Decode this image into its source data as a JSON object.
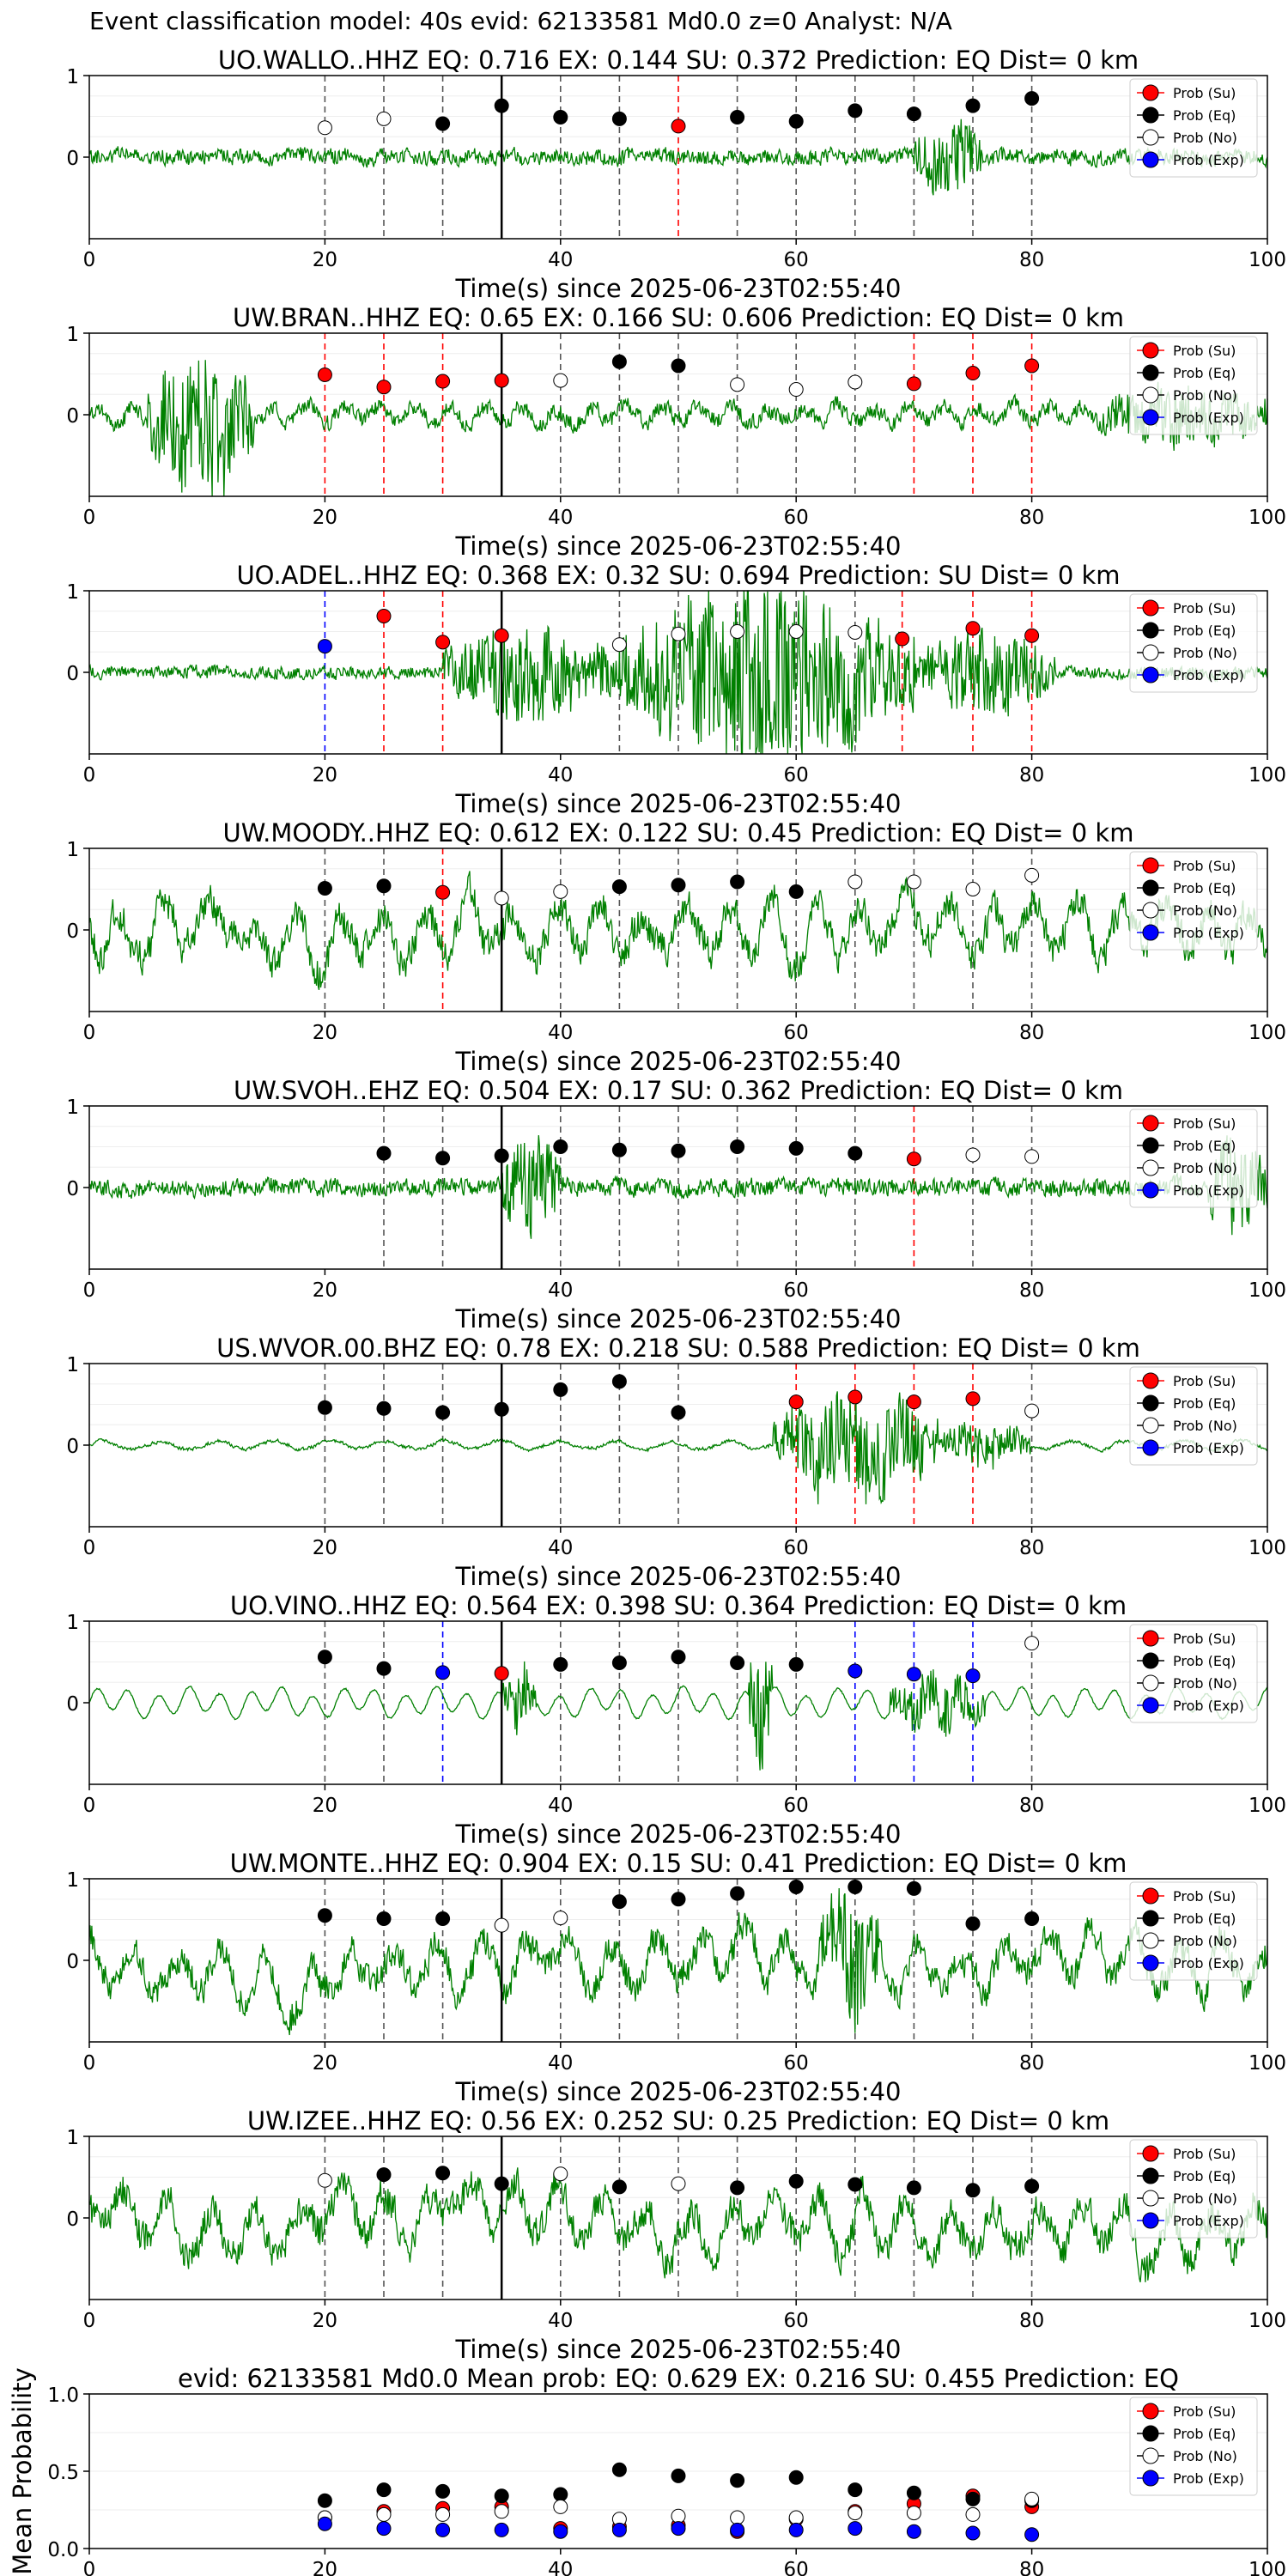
{
  "figure_title": "Event classification model: 40s evid: 62133581 Md0.0 z=0 Analyst: N/A",
  "legend": [
    "Prob (Su)",
    "Prob (Eq)",
    "Prob (No)",
    "Prob (Exp)"
  ],
  "colors": {
    "su": "#ff0000",
    "eq": "#000000",
    "no": "#ffffff",
    "exp": "#0000ff",
    "trace": "#008000"
  },
  "x_label": "Time(s) since 2025-06-23T02:55:40",
  "x_ticks": [
    "0",
    "20",
    "40",
    "60",
    "80",
    "100"
  ],
  "y_ticks": [
    "0",
    "1"
  ],
  "mean_y_label": "Mean Probability",
  "mean_y_ticks": [
    "0.0",
    "0.5",
    "1.0"
  ],
  "chart_data": [
    {
      "type": "scatter",
      "station": "UO.WALLO..HHZ",
      "title": "UO.WALLO..HHZ   EQ: 0.716  EX: 0.144  SU: 0.372   Prediction: EQ    Dist= 0 km",
      "xlim": [
        0,
        100
      ],
      "ylim": [
        -1,
        1
      ],
      "event_line": 35,
      "points": [
        [
          20,
          0.36,
          "no"
        ],
        [
          25,
          0.47,
          "no"
        ],
        [
          30,
          0.41,
          "eq"
        ],
        [
          35,
          0.63,
          "eq"
        ],
        [
          40,
          0.49,
          "eq"
        ],
        [
          45,
          0.47,
          "eq"
        ],
        [
          50,
          0.38,
          "su"
        ],
        [
          55,
          0.49,
          "eq"
        ],
        [
          60,
          0.44,
          "eq"
        ],
        [
          65,
          0.57,
          "eq"
        ],
        [
          70,
          0.53,
          "eq"
        ],
        [
          75,
          0.63,
          "eq"
        ],
        [
          80,
          0.72,
          "eq"
        ]
      ],
      "trace": {
        "seed": 11,
        "amp": 0.13,
        "style": "noise",
        "bursts": [
          [
            70,
            76,
            0.35
          ]
        ]
      }
    },
    {
      "type": "scatter",
      "station": "UW.BRAN..HHZ",
      "title": "UW.BRAN..HHZ   EQ: 0.65  EX: 0.166  SU: 0.606   Prediction: EQ    Dist= 0 km",
      "xlim": [
        0,
        100
      ],
      "ylim": [
        -1,
        1
      ],
      "event_line": 35,
      "points": [
        [
          20,
          0.49,
          "su"
        ],
        [
          25,
          0.34,
          "su"
        ],
        [
          30,
          0.41,
          "su"
        ],
        [
          35,
          0.42,
          "su"
        ],
        [
          40,
          0.42,
          "no"
        ],
        [
          45,
          0.65,
          "eq"
        ],
        [
          50,
          0.6,
          "eq"
        ],
        [
          55,
          0.37,
          "no"
        ],
        [
          60,
          0.31,
          "no"
        ],
        [
          65,
          0.4,
          "no"
        ],
        [
          70,
          0.38,
          "su"
        ],
        [
          75,
          0.51,
          "su"
        ],
        [
          80,
          0.6,
          "su"
        ]
      ],
      "trace": {
        "seed": 23,
        "amp": 0.17,
        "style": "mixed",
        "bursts": [
          [
            5,
            14,
            0.75
          ],
          [
            86,
            100,
            0.3
          ]
        ]
      }
    },
    {
      "type": "scatter",
      "station": "UO.ADEL..HHZ",
      "title": "UO.ADEL..HHZ   EQ: 0.368  EX: 0.32  SU: 0.694   Prediction: SU    Dist= 0 km",
      "xlim": [
        0,
        100
      ],
      "ylim": [
        -1,
        1
      ],
      "event_line": 35,
      "points": [
        [
          20,
          0.32,
          "exp"
        ],
        [
          25,
          0.69,
          "su"
        ],
        [
          30,
          0.37,
          "su"
        ],
        [
          35,
          0.45,
          "su"
        ],
        [
          45,
          0.34,
          "no"
        ],
        [
          50,
          0.47,
          "no"
        ],
        [
          55,
          0.5,
          "no"
        ],
        [
          60,
          0.5,
          "no"
        ],
        [
          65,
          0.49,
          "no"
        ],
        [
          69,
          0.41,
          "su"
        ],
        [
          75,
          0.54,
          "su"
        ],
        [
          80,
          0.45,
          "su"
        ]
      ],
      "trace": {
        "seed": 37,
        "amp": 0.1,
        "style": "noise",
        "bursts": [
          [
            30,
            45,
            0.45
          ],
          [
            45,
            70,
            0.85
          ],
          [
            70,
            82,
            0.4
          ]
        ]
      }
    },
    {
      "type": "scatter",
      "station": "UW.MOODY..HHZ",
      "title": "UW.MOODY..HHZ   EQ: 0.612  EX: 0.122  SU: 0.45   Prediction: EQ    Dist= 0 km",
      "xlim": [
        0,
        100
      ],
      "ylim": [
        -1,
        1
      ],
      "event_line": 35,
      "points": [
        [
          20,
          0.51,
          "eq"
        ],
        [
          25,
          0.54,
          "eq"
        ],
        [
          30,
          0.46,
          "su"
        ],
        [
          35,
          0.39,
          "no"
        ],
        [
          40,
          0.47,
          "no"
        ],
        [
          45,
          0.53,
          "eq"
        ],
        [
          50,
          0.55,
          "eq"
        ],
        [
          55,
          0.59,
          "eq"
        ],
        [
          60,
          0.47,
          "eq"
        ],
        [
          65,
          0.59,
          "no"
        ],
        [
          70,
          0.59,
          "no"
        ],
        [
          75,
          0.5,
          "no"
        ],
        [
          80,
          0.67,
          "no"
        ]
      ],
      "trace": {
        "seed": 41,
        "amp": 0.45,
        "style": "swell",
        "bursts": []
      }
    },
    {
      "type": "scatter",
      "station": "UW.SVOH..EHZ",
      "title": "UW.SVOH..EHZ   EQ: 0.504  EX: 0.17  SU: 0.362   Prediction: EQ    Dist= 0 km",
      "xlim": [
        0,
        100
      ],
      "ylim": [
        -1,
        1
      ],
      "event_line": 35,
      "points": [
        [
          25,
          0.42,
          "eq"
        ],
        [
          30,
          0.36,
          "eq"
        ],
        [
          35,
          0.39,
          "eq"
        ],
        [
          40,
          0.5,
          "eq"
        ],
        [
          45,
          0.46,
          "eq"
        ],
        [
          50,
          0.45,
          "eq"
        ],
        [
          55,
          0.5,
          "eq"
        ],
        [
          60,
          0.48,
          "eq"
        ],
        [
          65,
          0.42,
          "eq"
        ],
        [
          70,
          0.35,
          "su"
        ],
        [
          75,
          0.4,
          "no"
        ],
        [
          80,
          0.38,
          "no"
        ]
      ],
      "trace": {
        "seed": 53,
        "amp": 0.14,
        "style": "noise",
        "bursts": [
          [
            35,
            40,
            0.5
          ],
          [
            95,
            100,
            0.5
          ]
        ]
      }
    },
    {
      "type": "scatter",
      "station": "US.WVOR.00.BHZ",
      "title": "US.WVOR.00.BHZ   EQ: 0.78  EX: 0.218  SU: 0.588   Prediction: EQ    Dist= 0 km",
      "xlim": [
        0,
        100
      ],
      "ylim": [
        -1,
        1
      ],
      "event_line": 35,
      "points": [
        [
          20,
          0.46,
          "eq"
        ],
        [
          25,
          0.45,
          "eq"
        ],
        [
          30,
          0.4,
          "eq"
        ],
        [
          35,
          0.44,
          "eq"
        ],
        [
          40,
          0.68,
          "eq"
        ],
        [
          45,
          0.78,
          "eq"
        ],
        [
          50,
          0.4,
          "eq"
        ],
        [
          60,
          0.53,
          "su"
        ],
        [
          65,
          0.59,
          "su"
        ],
        [
          70,
          0.53,
          "su"
        ],
        [
          75,
          0.57,
          "su"
        ],
        [
          80,
          0.42,
          "no"
        ]
      ],
      "trace": {
        "seed": 67,
        "amp": 0.08,
        "style": "smooth",
        "bursts": [
          [
            58,
            72,
            0.6
          ],
          [
            72,
            80,
            0.25
          ]
        ]
      }
    },
    {
      "type": "scatter",
      "station": "UO.VINO..HHZ",
      "title": "UO.VINO..HHZ   EQ: 0.564  EX: 0.398  SU: 0.364   Prediction: EQ    Dist= 0 km",
      "xlim": [
        0,
        100
      ],
      "ylim": [
        -1,
        1
      ],
      "event_line": 35,
      "points": [
        [
          20,
          0.56,
          "eq"
        ],
        [
          25,
          0.42,
          "eq"
        ],
        [
          30,
          0.37,
          "exp"
        ],
        [
          35,
          0.36,
          "su"
        ],
        [
          40,
          0.47,
          "eq"
        ],
        [
          45,
          0.49,
          "eq"
        ],
        [
          50,
          0.56,
          "eq"
        ],
        [
          55,
          0.49,
          "eq"
        ],
        [
          60,
          0.47,
          "eq"
        ],
        [
          65,
          0.39,
          "exp"
        ],
        [
          70,
          0.35,
          "exp"
        ],
        [
          75,
          0.33,
          "exp"
        ],
        [
          80,
          0.73,
          "no"
        ]
      ],
      "trace": {
        "seed": 71,
        "amp": 0.2,
        "style": "wave",
        "bursts": [
          [
            35,
            38,
            0.45
          ],
          [
            56,
            58,
            0.9
          ],
          [
            68,
            76,
            0.35
          ]
        ]
      }
    },
    {
      "type": "scatter",
      "station": "UW.MONTE..HHZ",
      "title": "UW.MONTE..HHZ   EQ: 0.904  EX: 0.15  SU: 0.41   Prediction: EQ    Dist= 0 km",
      "xlim": [
        0,
        100
      ],
      "ylim": [
        -1,
        1
      ],
      "event_line": 35,
      "points": [
        [
          20,
          0.55,
          "eq"
        ],
        [
          25,
          0.51,
          "eq"
        ],
        [
          30,
          0.51,
          "eq"
        ],
        [
          35,
          0.43,
          "no"
        ],
        [
          40,
          0.52,
          "no"
        ],
        [
          45,
          0.72,
          "eq"
        ],
        [
          50,
          0.75,
          "eq"
        ],
        [
          55,
          0.82,
          "eq"
        ],
        [
          60,
          0.9,
          "eq"
        ],
        [
          65,
          0.9,
          "eq"
        ],
        [
          70,
          0.88,
          "eq"
        ],
        [
          75,
          0.45,
          "eq"
        ],
        [
          80,
          0.51,
          "eq"
        ]
      ],
      "trace": {
        "seed": 83,
        "amp": 0.42,
        "style": "swell",
        "bursts": [
          [
            62,
            67,
            0.7
          ]
        ]
      }
    },
    {
      "type": "scatter",
      "station": "UW.IZEE..HHZ",
      "title": "UW.IZEE..HHZ   EQ: 0.56  EX: 0.252  SU: 0.25   Prediction: EQ    Dist= 0 km",
      "xlim": [
        0,
        100
      ],
      "ylim": [
        -1,
        1
      ],
      "event_line": 35,
      "points": [
        [
          20,
          0.46,
          "no"
        ],
        [
          25,
          0.53,
          "eq"
        ],
        [
          30,
          0.55,
          "eq"
        ],
        [
          35,
          0.42,
          "eq"
        ],
        [
          40,
          0.54,
          "no"
        ],
        [
          45,
          0.38,
          "eq"
        ],
        [
          50,
          0.42,
          "no"
        ],
        [
          55,
          0.37,
          "eq"
        ],
        [
          60,
          0.45,
          "eq"
        ],
        [
          65,
          0.41,
          "eq"
        ],
        [
          70,
          0.37,
          "eq"
        ],
        [
          75,
          0.34,
          "eq"
        ],
        [
          80,
          0.39,
          "eq"
        ]
      ],
      "trace": {
        "seed": 97,
        "amp": 0.45,
        "style": "swell",
        "bursts": []
      }
    },
    {
      "type": "scatter",
      "title": "evid: 62133581  Md0.0   Mean prob:    EQ: 0.629  EX: 0.216  SU: 0.455   Prediction: EQ",
      "ylabel": "Mean Probability",
      "xlim": [
        0,
        100
      ],
      "ylim": [
        0,
        1
      ],
      "x": [
        20,
        25,
        30,
        35,
        40,
        45,
        50,
        55,
        60,
        65,
        70,
        75,
        80
      ],
      "series": [
        {
          "name": "Prob (Su)",
          "key": "su",
          "values": [
            0.2,
            0.24,
            0.26,
            0.27,
            0.13,
            0.14,
            0.15,
            0.11,
            0.19,
            0.24,
            0.29,
            0.34,
            0.27
          ]
        },
        {
          "name": "Prob (Eq)",
          "key": "eq",
          "values": [
            0.31,
            0.38,
            0.37,
            0.34,
            0.35,
            0.51,
            0.47,
            0.44,
            0.46,
            0.38,
            0.36,
            0.32,
            0.31
          ]
        },
        {
          "name": "Prob (No)",
          "key": "no",
          "values": [
            0.2,
            0.22,
            0.22,
            0.24,
            0.27,
            0.19,
            0.21,
            0.2,
            0.2,
            0.23,
            0.23,
            0.22,
            0.32
          ]
        },
        {
          "name": "Prob (Exp)",
          "key": "exp",
          "values": [
            0.16,
            0.13,
            0.12,
            0.12,
            0.11,
            0.12,
            0.13,
            0.12,
            0.12,
            0.13,
            0.11,
            0.1,
            0.09
          ]
        }
      ]
    }
  ]
}
